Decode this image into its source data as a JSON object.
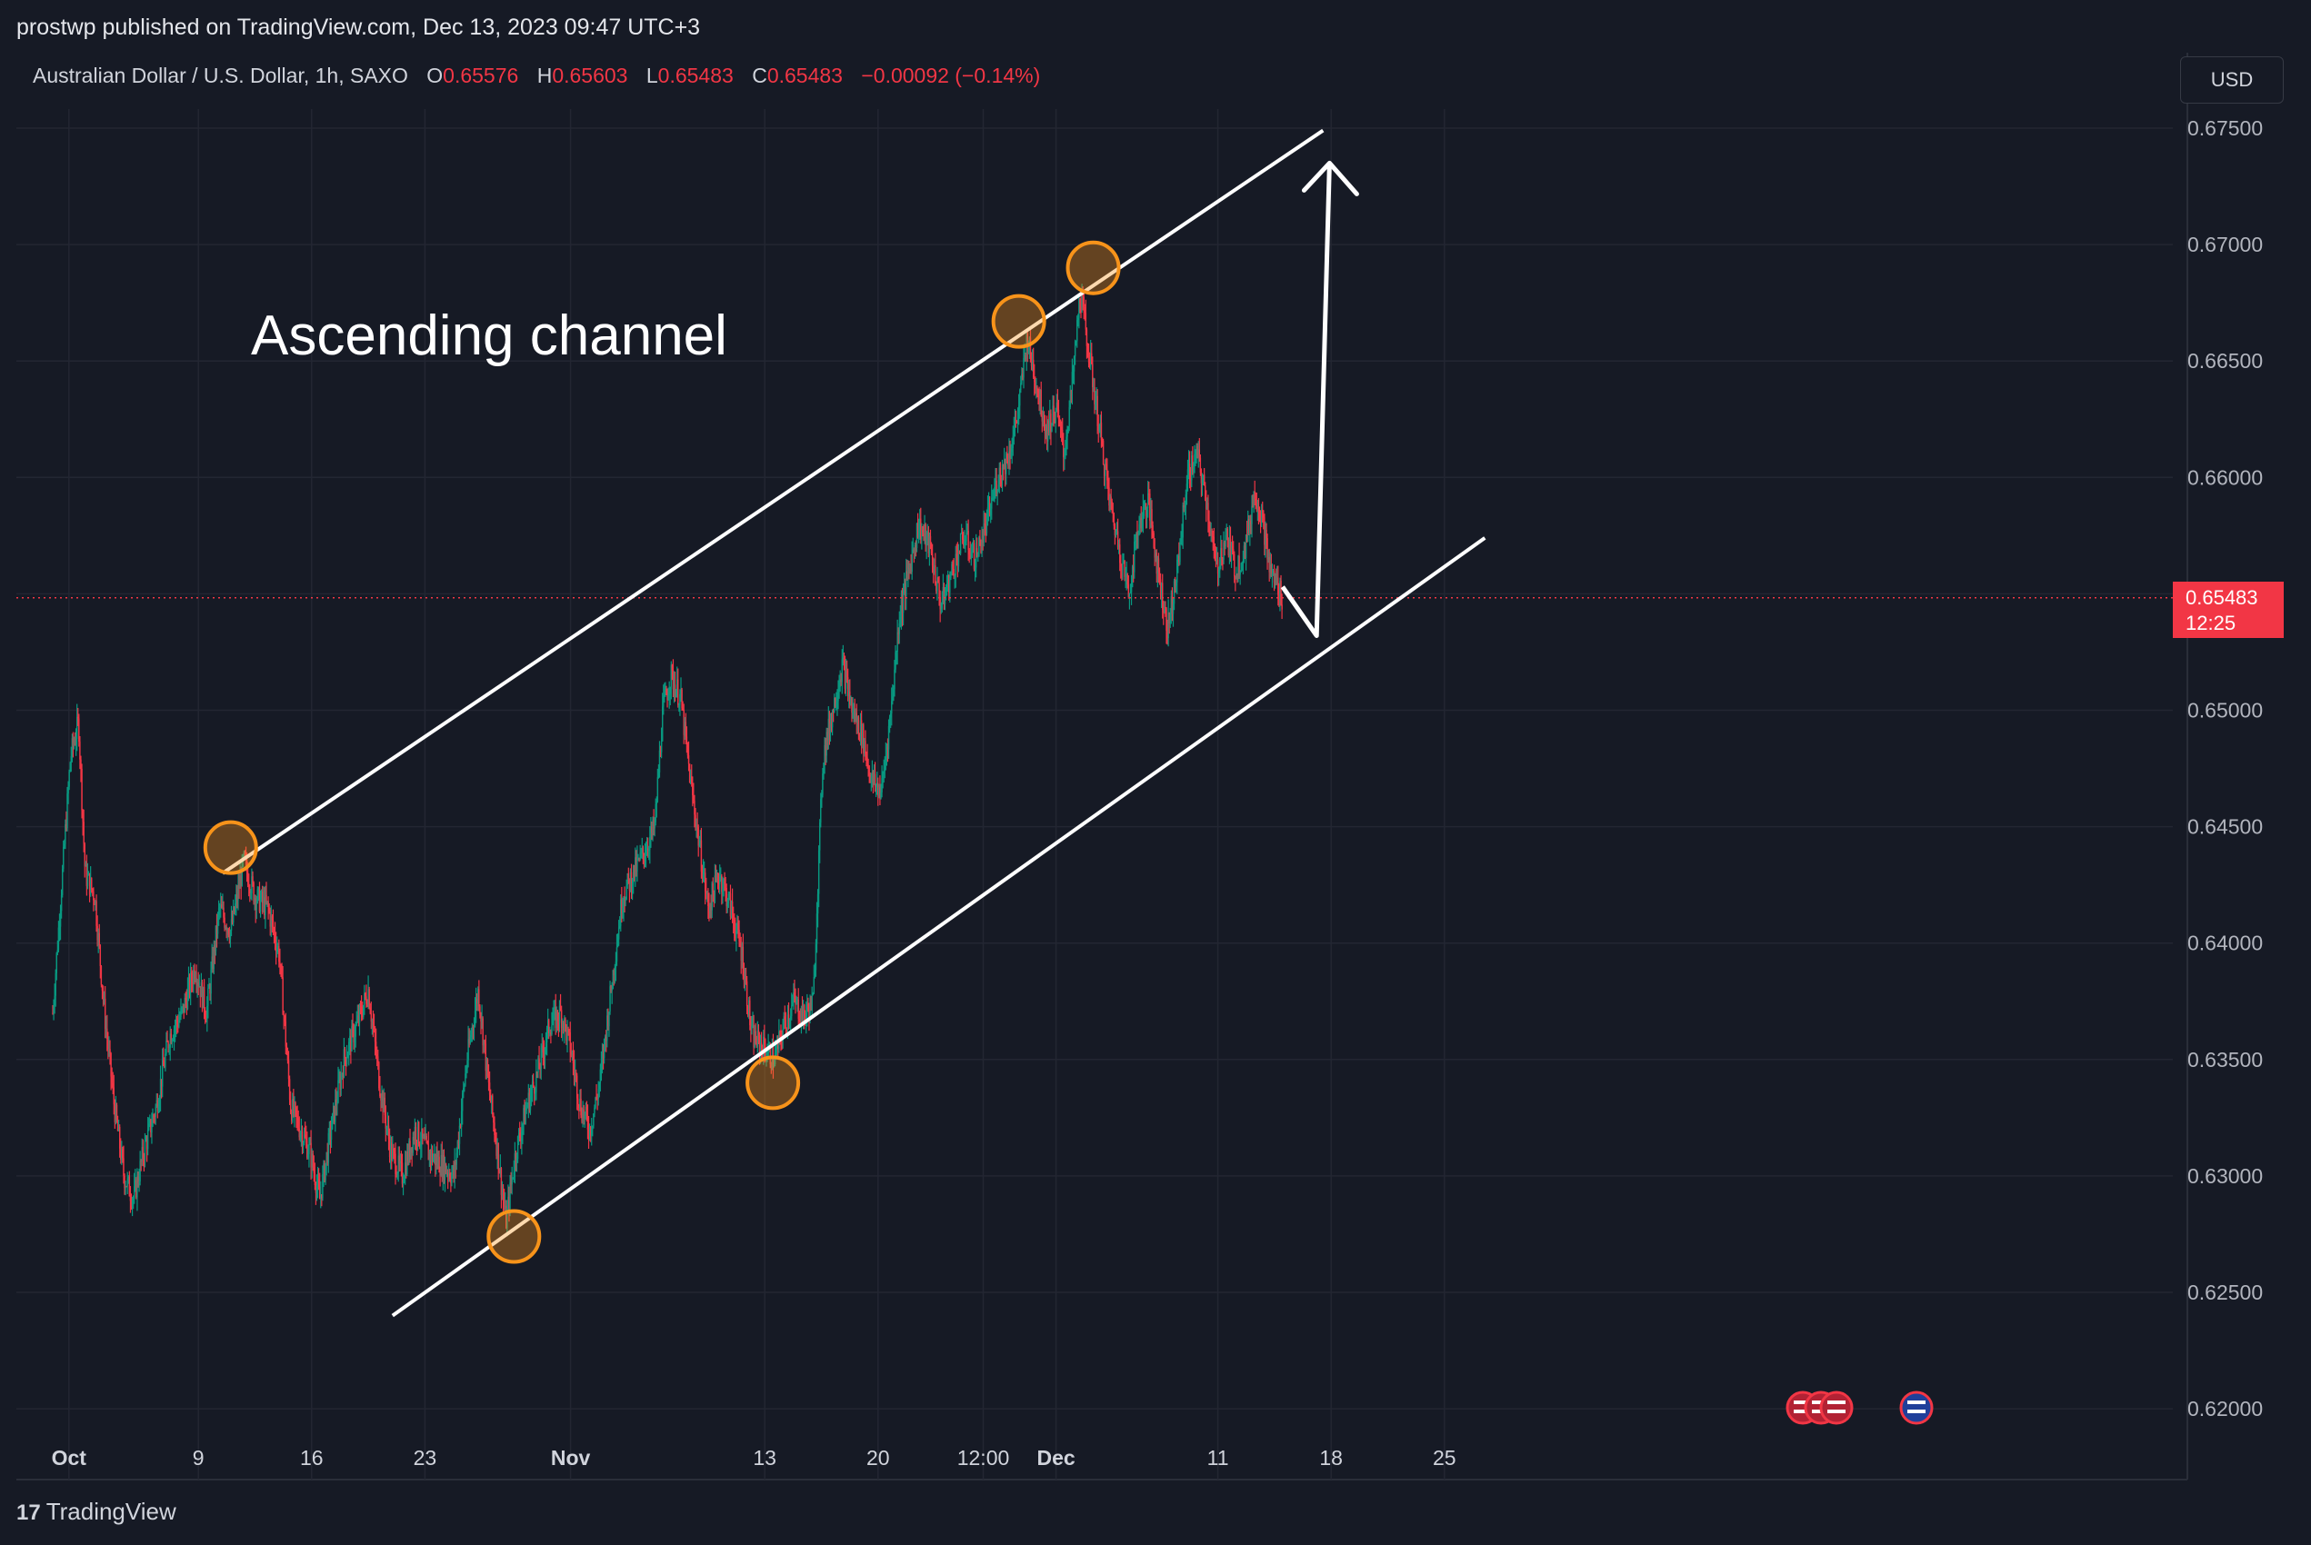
{
  "header": {
    "published_text": "prostwp published on TradingView.com, Dec 13, 2023 09:47 UTC+3"
  },
  "legend": {
    "symbol": "Australian Dollar / U.S. Dollar, 1h, SAXO",
    "open_label": "O",
    "open": "0.65576",
    "high_label": "H",
    "high": "0.65603",
    "low_label": "L",
    "low": "0.65483",
    "close_label": "C",
    "close": "0.65483",
    "change": "−0.00092 (−0.14%)"
  },
  "currency_button": "USD",
  "price_tag": {
    "price": "0.65483",
    "countdown": "12:25"
  },
  "annotation_text": "Ascending channel",
  "footer": {
    "logo_text": "TradingView"
  },
  "colors": {
    "background": "#161a25",
    "up_candle": "#089981",
    "down_candle": "#f23645",
    "channel_line": "#ffffff",
    "marker_circle": "#f7931a",
    "last_price_line": "#f23645",
    "grid": "#232632"
  },
  "chart_data": {
    "type": "candlestick",
    "y_axis": {
      "ticks": [
        "0.67500",
        "0.67000",
        "0.66500",
        "0.66000",
        "0.65500",
        "0.65000",
        "0.64500",
        "0.64000",
        "0.63500",
        "0.63000",
        "0.62500",
        "0.62000"
      ],
      "range": [
        0.6191,
        0.6772
      ]
    },
    "x_axis": {
      "ticks": [
        {
          "label": "Oct",
          "major": true,
          "day": 1
        },
        {
          "label": "9",
          "major": false,
          "day": 9
        },
        {
          "label": "16",
          "major": false,
          "day": 16
        },
        {
          "label": "23",
          "major": false,
          "day": 23
        },
        {
          "label": "Nov",
          "major": true,
          "day": 32
        },
        {
          "label": "13",
          "major": false,
          "day": 44
        },
        {
          "label": "20",
          "major": false,
          "day": 51
        },
        {
          "label": "12:00",
          "major": false,
          "day": 57.5
        },
        {
          "label": "Dec",
          "major": true,
          "day": 62
        },
        {
          "label": "11",
          "major": false,
          "day": 72
        },
        {
          "label": "18",
          "major": false,
          "day": 79
        },
        {
          "label": "25",
          "major": false,
          "day": 86
        }
      ],
      "note": "day = days since Sep 30, 2023"
    },
    "last_price": 0.65483,
    "price_path": [
      {
        "day": 0.0,
        "price": 0.637
      },
      {
        "day": 0.6,
        "price": 0.643
      },
      {
        "day": 1.1,
        "price": 0.648
      },
      {
        "day": 1.6,
        "price": 0.6495
      },
      {
        "day": 2.0,
        "price": 0.643
      },
      {
        "day": 2.6,
        "price": 0.642
      },
      {
        "day": 3.2,
        "price": 0.637
      },
      {
        "day": 3.8,
        "price": 0.633
      },
      {
        "day": 4.4,
        "price": 0.63
      },
      {
        "day": 5.0,
        "price": 0.629
      },
      {
        "day": 5.6,
        "price": 0.631
      },
      {
        "day": 6.4,
        "price": 0.633
      },
      {
        "day": 7.2,
        "price": 0.636
      },
      {
        "day": 8.0,
        "price": 0.637
      },
      {
        "day": 8.8,
        "price": 0.639
      },
      {
        "day": 9.5,
        "price": 0.637
      },
      {
        "day": 10.3,
        "price": 0.6415
      },
      {
        "day": 11.0,
        "price": 0.6405
      },
      {
        "day": 11.8,
        "price": 0.6435
      },
      {
        "day": 12.5,
        "price": 0.642
      },
      {
        "day": 13.3,
        "price": 0.6415
      },
      {
        "day": 14.0,
        "price": 0.6395
      },
      {
        "day": 14.7,
        "price": 0.633
      },
      {
        "day": 15.3,
        "price": 0.632
      },
      {
        "day": 15.9,
        "price": 0.631
      },
      {
        "day": 16.5,
        "price": 0.629
      },
      {
        "day": 17.2,
        "price": 0.632
      },
      {
        "day": 18.0,
        "price": 0.635
      },
      {
        "day": 18.8,
        "price": 0.6365
      },
      {
        "day": 19.5,
        "price": 0.638
      },
      {
        "day": 20.2,
        "price": 0.634
      },
      {
        "day": 20.9,
        "price": 0.631
      },
      {
        "day": 21.6,
        "price": 0.63
      },
      {
        "day": 22.4,
        "price": 0.632
      },
      {
        "day": 23.2,
        "price": 0.631
      },
      {
        "day": 24.0,
        "price": 0.6305
      },
      {
        "day": 24.8,
        "price": 0.63
      },
      {
        "day": 25.6,
        "price": 0.635
      },
      {
        "day": 26.3,
        "price": 0.638
      },
      {
        "day": 26.9,
        "price": 0.634
      },
      {
        "day": 27.5,
        "price": 0.631
      },
      {
        "day": 28.0,
        "price": 0.628
      },
      {
        "day": 28.6,
        "price": 0.631
      },
      {
        "day": 29.3,
        "price": 0.633
      },
      {
        "day": 30.0,
        "price": 0.6345
      },
      {
        "day": 30.7,
        "price": 0.6365
      },
      {
        "day": 31.4,
        "price": 0.637
      },
      {
        "day": 32.0,
        "price": 0.6355
      },
      {
        "day": 32.6,
        "price": 0.633
      },
      {
        "day": 33.2,
        "price": 0.632
      },
      {
        "day": 33.8,
        "price": 0.634
      },
      {
        "day": 34.5,
        "price": 0.638
      },
      {
        "day": 35.2,
        "price": 0.642
      },
      {
        "day": 35.9,
        "price": 0.643
      },
      {
        "day": 36.6,
        "price": 0.644
      },
      {
        "day": 37.2,
        "price": 0.645
      },
      {
        "day": 37.7,
        "price": 0.65
      },
      {
        "day": 38.2,
        "price": 0.6515
      },
      {
        "day": 38.8,
        "price": 0.6505
      },
      {
        "day": 39.4,
        "price": 0.647
      },
      {
        "day": 40.0,
        "price": 0.644
      },
      {
        "day": 40.5,
        "price": 0.6415
      },
      {
        "day": 41.2,
        "price": 0.643
      },
      {
        "day": 41.9,
        "price": 0.6415
      },
      {
        "day": 42.6,
        "price": 0.6395
      },
      {
        "day": 43.2,
        "price": 0.636
      },
      {
        "day": 43.9,
        "price": 0.6355
      },
      {
        "day": 44.6,
        "price": 0.635
      },
      {
        "day": 45.2,
        "price": 0.6365
      },
      {
        "day": 45.8,
        "price": 0.6375
      },
      {
        "day": 46.4,
        "price": 0.6368
      },
      {
        "day": 47.0,
        "price": 0.6375
      },
      {
        "day": 47.3,
        "price": 0.643
      },
      {
        "day": 47.6,
        "price": 0.648
      },
      {
        "day": 48.2,
        "price": 0.65
      },
      {
        "day": 48.8,
        "price": 0.652
      },
      {
        "day": 49.4,
        "price": 0.65
      },
      {
        "day": 50.0,
        "price": 0.649
      },
      {
        "day": 50.6,
        "price": 0.647
      },
      {
        "day": 51.2,
        "price": 0.6465
      },
      {
        "day": 51.8,
        "price": 0.65
      },
      {
        "day": 52.3,
        "price": 0.654
      },
      {
        "day": 52.9,
        "price": 0.656
      },
      {
        "day": 53.5,
        "price": 0.658
      },
      {
        "day": 54.2,
        "price": 0.657
      },
      {
        "day": 54.9,
        "price": 0.6545
      },
      {
        "day": 55.6,
        "price": 0.656
      },
      {
        "day": 56.3,
        "price": 0.6575
      },
      {
        "day": 57.0,
        "price": 0.6565
      },
      {
        "day": 57.7,
        "price": 0.658
      },
      {
        "day": 58.4,
        "price": 0.66
      },
      {
        "day": 59.1,
        "price": 0.661
      },
      {
        "day": 59.7,
        "price": 0.663
      },
      {
        "day": 60.2,
        "price": 0.666
      },
      {
        "day": 60.8,
        "price": 0.664
      },
      {
        "day": 61.4,
        "price": 0.662
      },
      {
        "day": 62.0,
        "price": 0.663
      },
      {
        "day": 62.5,
        "price": 0.661
      },
      {
        "day": 63.0,
        "price": 0.664
      },
      {
        "day": 63.5,
        "price": 0.668
      },
      {
        "day": 64.1,
        "price": 0.665
      },
      {
        "day": 64.7,
        "price": 0.662
      },
      {
        "day": 65.3,
        "price": 0.659
      },
      {
        "day": 65.9,
        "price": 0.657
      },
      {
        "day": 66.5,
        "price": 0.655
      },
      {
        "day": 67.1,
        "price": 0.658
      },
      {
        "day": 67.7,
        "price": 0.659
      },
      {
        "day": 68.3,
        "price": 0.656
      },
      {
        "day": 68.9,
        "price": 0.6535
      },
      {
        "day": 69.5,
        "price": 0.656
      },
      {
        "day": 70.1,
        "price": 0.66
      },
      {
        "day": 70.7,
        "price": 0.661
      },
      {
        "day": 71.3,
        "price": 0.659
      },
      {
        "day": 71.9,
        "price": 0.656
      },
      {
        "day": 72.5,
        "price": 0.6575
      },
      {
        "day": 73.1,
        "price": 0.656
      },
      {
        "day": 73.7,
        "price": 0.657
      },
      {
        "day": 74.3,
        "price": 0.6595
      },
      {
        "day": 74.8,
        "price": 0.658
      },
      {
        "day": 75.2,
        "price": 0.656
      },
      {
        "day": 75.6,
        "price": 0.6555
      },
      {
        "day": 76.0,
        "price": 0.6548
      }
    ],
    "channel": {
      "upper_line": {
        "from": {
          "day": 10.5,
          "price": 0.643
        },
        "to": {
          "day": 78.5,
          "price": 0.6749
        }
      },
      "lower_line": {
        "from": {
          "day": 21.0,
          "price": 0.624
        },
        "to": {
          "day": 88.5,
          "price": 0.6574
        }
      }
    },
    "projection_path": [
      {
        "day": 76.0,
        "price": 0.6553
      },
      {
        "day": 78.1,
        "price": 0.6532
      },
      {
        "day": 78.9,
        "price": 0.6735
      }
    ],
    "touch_points": [
      {
        "day": 11.0,
        "price": 0.6441
      },
      {
        "day": 28.5,
        "price": 0.6274
      },
      {
        "day": 44.5,
        "price": 0.634
      },
      {
        "day": 59.7,
        "price": 0.6667
      },
      {
        "day": 64.3,
        "price": 0.669
      }
    ]
  }
}
